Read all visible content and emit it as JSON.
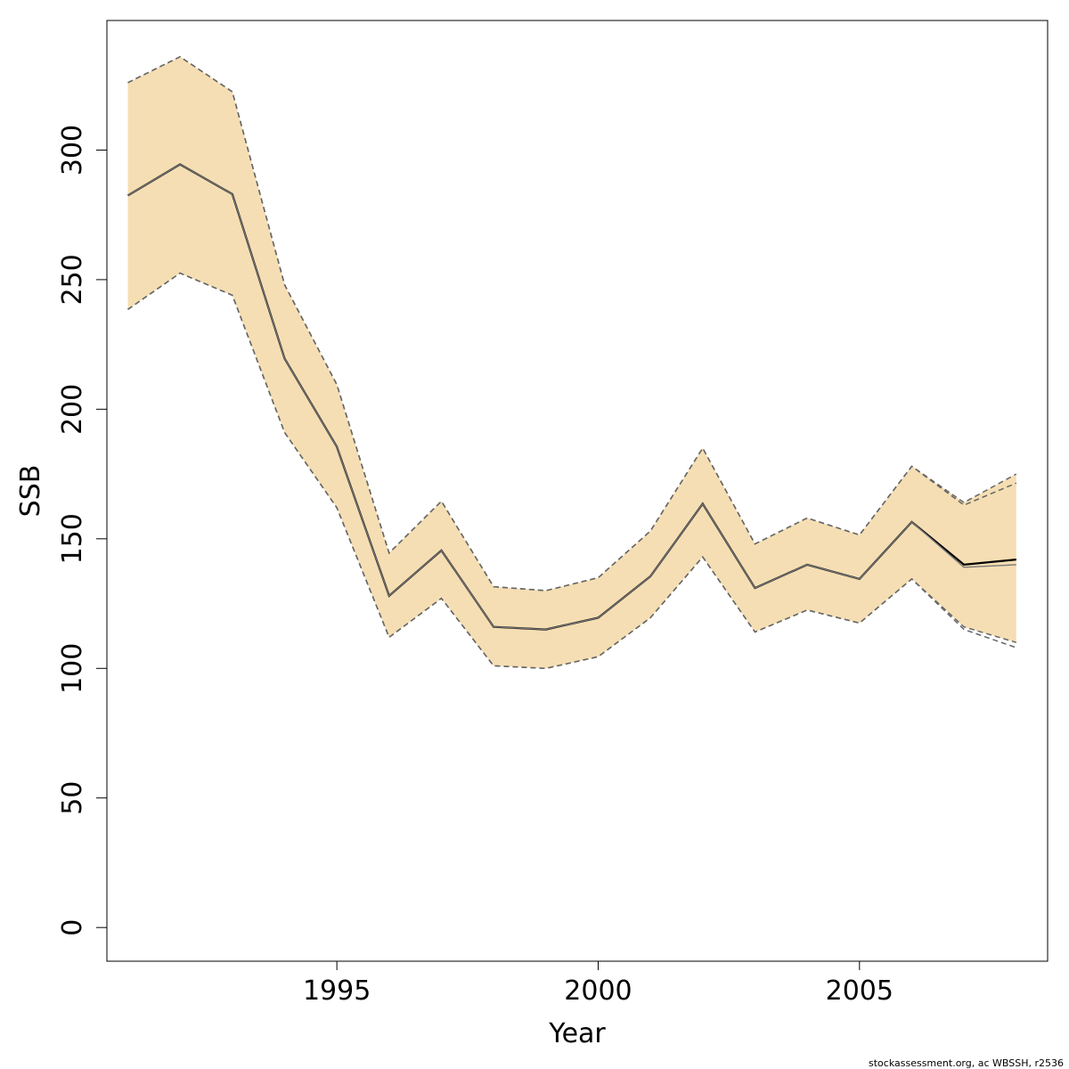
{
  "chart_data": {
    "type": "area",
    "xlabel": "Year",
    "ylabel": "SSB",
    "xlim": [
      1990.6,
      2008.6
    ],
    "ylim": [
      -13,
      350
    ],
    "x_ticks": [
      1995,
      2000,
      2005
    ],
    "y_ticks": [
      0,
      50,
      100,
      150,
      200,
      250,
      300
    ],
    "grid": false,
    "colors": {
      "band": "#f5deb3",
      "bound": "#666666",
      "line_main": "#000000",
      "line_retro": "#777777"
    },
    "years": [
      1991,
      1992,
      1993,
      1994,
      1995,
      1996,
      1997,
      1998,
      1999,
      2000,
      2001,
      2002,
      2003,
      2004,
      2005,
      2006,
      2007,
      2008
    ],
    "series": [
      {
        "values": [
          282.5,
          294.5,
          283,
          219.5,
          185.5,
          128,
          145.5,
          116,
          115,
          119.5,
          135.5,
          163.5,
          131,
          140,
          134.5,
          156.5,
          140,
          142
        ]
      },
      {
        "values": [
          282.5,
          294.5,
          283,
          219.5,
          185.5,
          128,
          145.5,
          116,
          115,
          119.5,
          135.5,
          163.5,
          131,
          140,
          134.5,
          156.5,
          139,
          140
        ]
      }
    ],
    "band": {
      "upper": [
        326,
        336,
        322.5,
        248,
        209.5,
        144.5,
        164.5,
        131.5,
        130,
        135,
        153,
        185,
        148,
        158,
        151.5,
        178,
        164,
        175
      ],
      "lower": [
        238.5,
        252.5,
        244,
        191,
        162,
        112,
        127,
        101,
        100,
        104.5,
        119.5,
        143,
        114,
        122.5,
        117.5,
        134.5,
        116,
        110
      ]
    },
    "bounds": [
      {
        "upper": [
          326,
          336,
          322.5,
          248,
          209.5,
          144.5,
          164.5,
          131.5,
          130,
          135,
          153,
          185,
          148,
          158,
          151.5,
          178,
          164,
          175
        ],
        "lower": [
          238.5,
          252.5,
          244,
          191,
          162,
          112,
          127,
          101,
          100,
          104.5,
          119.5,
          143,
          114,
          122.5,
          117.5,
          134.5,
          116,
          110
        ]
      },
      {
        "upper": [
          326,
          336,
          322.5,
          248,
          209.5,
          144.5,
          164.5,
          131.5,
          130,
          135,
          153,
          185,
          148,
          158,
          151.5,
          178,
          163,
          171.5
        ],
        "lower": [
          238.5,
          252.5,
          244,
          191,
          162,
          112,
          127,
          101,
          100,
          104.5,
          119.5,
          143,
          114,
          122.5,
          117.5,
          134.5,
          115,
          108
        ]
      }
    ]
  },
  "footer": "stockassessment.org, ac  WBSSH, r2536"
}
